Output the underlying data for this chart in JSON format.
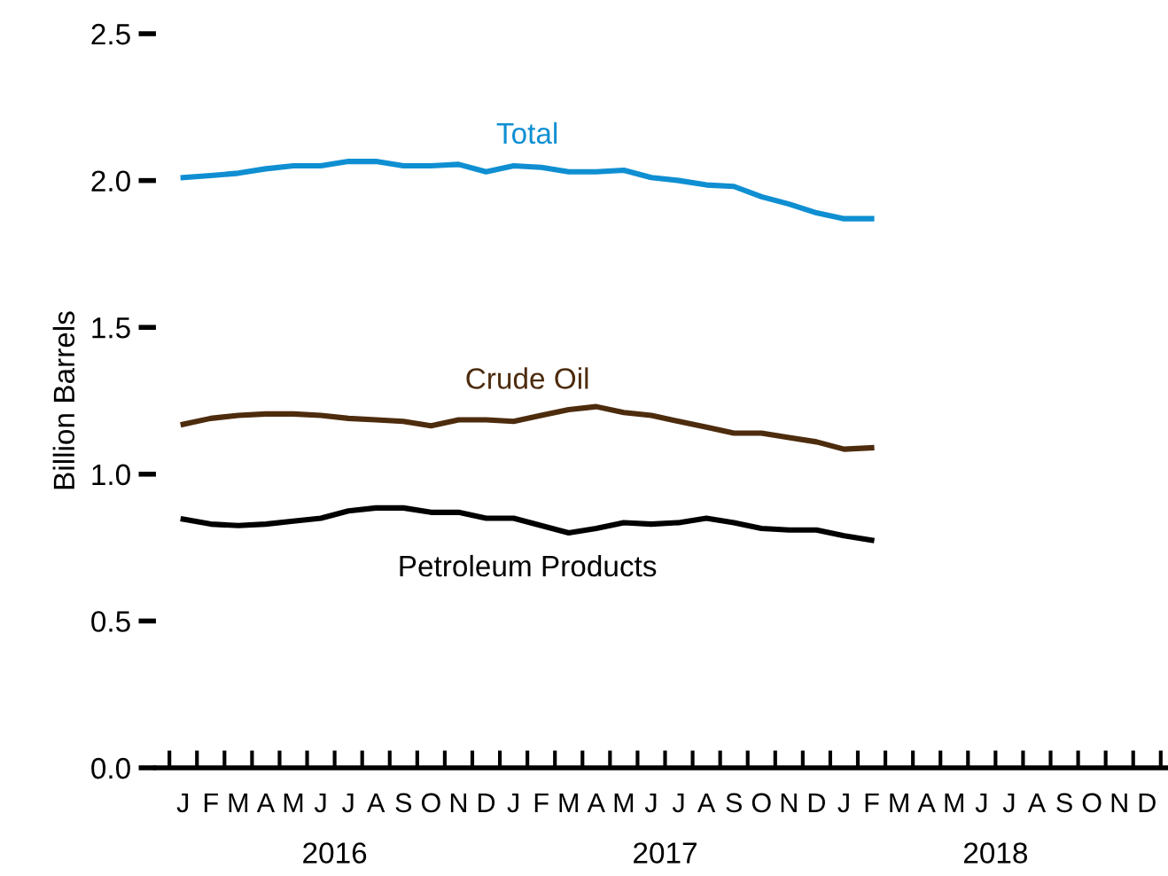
{
  "chart_data": {
    "type": "line",
    "ylabel": "Billion Barrels",
    "categories": [
      "J",
      "F",
      "M",
      "A",
      "M",
      "J",
      "J",
      "A",
      "S",
      "O",
      "N",
      "D",
      "J",
      "F",
      "M",
      "A",
      "M",
      "J",
      "J",
      "A",
      "S",
      "O",
      "N",
      "D",
      "J",
      "F",
      "M",
      "A",
      "M",
      "J",
      "J",
      "A",
      "S",
      "O",
      "N",
      "D"
    ],
    "annotations": [
      "2016",
      "2017",
      "2018"
    ],
    "series": [
      {
        "name": "Total",
        "color": "#0f8fd2",
        "values": [
          2.01,
          2.017,
          2.025,
          2.04,
          2.05,
          2.05,
          2.065,
          2.065,
          2.05,
          2.05,
          2.055,
          2.03,
          2.05,
          2.045,
          2.03,
          2.03,
          2.035,
          2.01,
          2.0,
          1.985,
          1.98,
          1.945,
          1.92,
          1.89,
          1.87,
          1.87,
          null,
          null,
          null,
          null,
          null,
          null,
          null,
          null,
          null,
          null
        ]
      },
      {
        "name": "Crude Oil",
        "color": "#4d2c0e",
        "values": [
          1.17,
          1.19,
          1.2,
          1.205,
          1.205,
          1.2,
          1.19,
          1.185,
          1.18,
          1.165,
          1.185,
          1.185,
          1.18,
          1.2,
          1.22,
          1.23,
          1.21,
          1.2,
          1.18,
          1.16,
          1.14,
          1.14,
          1.125,
          1.11,
          1.085,
          1.09,
          null,
          null,
          null,
          null,
          null,
          null,
          null,
          null,
          null,
          null
        ]
      },
      {
        "name": "Petroleum Products",
        "color": "#000000",
        "values": [
          0.847,
          0.83,
          0.825,
          0.83,
          0.84,
          0.85,
          0.875,
          0.885,
          0.885,
          0.87,
          0.87,
          0.85,
          0.85,
          0.825,
          0.8,
          0.815,
          0.835,
          0.83,
          0.835,
          0.85,
          0.835,
          0.815,
          0.81,
          0.81,
          0.79,
          0.775,
          null,
          null,
          null,
          null,
          null,
          null,
          null,
          null,
          null,
          null
        ]
      }
    ],
    "ylim": [
      0,
      2.5
    ],
    "yticks": [
      {
        "value": 0,
        "label": "0.0"
      },
      {
        "value": 0.5,
        "label": "0.5"
      },
      {
        "value": 1,
        "label": "1.0"
      },
      {
        "value": 1.5,
        "label": "1.5"
      },
      {
        "value": 2,
        "label": "2.0"
      },
      {
        "value": 2.5,
        "label": "2.5"
      }
    ],
    "grid": false,
    "legend": false,
    "marker": "none",
    "line_style": "solid"
  }
}
